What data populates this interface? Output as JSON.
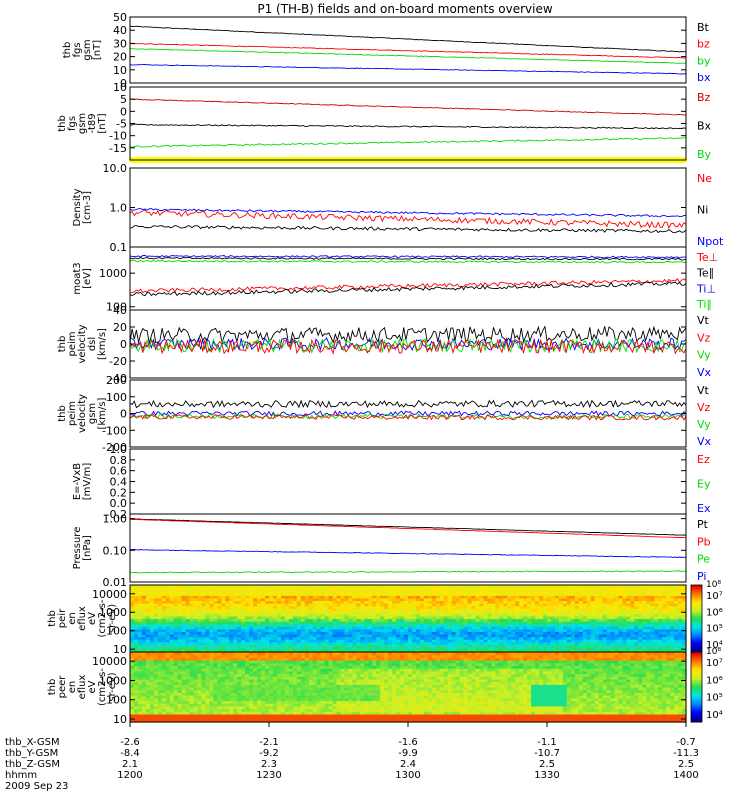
{
  "title": "P1 (TH-B) fields and on-board moments overview",
  "colors": {
    "black": "#000000",
    "red": "#ff0000",
    "green": "#00dd00",
    "blue": "#0000ff",
    "yellow": "#ffff00",
    "darkred": "#cc0000"
  },
  "chart_data": [
    {
      "type": "line",
      "ylabel": [
        "thb",
        "fgs",
        "gsm",
        "[nT]"
      ],
      "ylim": [
        0,
        50
      ],
      "yticks": [
        "0",
        "10",
        "20",
        "30",
        "40",
        "50"
      ],
      "legend": [
        {
          "name": "Bt",
          "color": "black"
        },
        {
          "name": "bz",
          "color": "red"
        },
        {
          "name": "by",
          "color": "green"
        },
        {
          "name": "bx",
          "color": "blue"
        }
      ],
      "series": [
        {
          "name": "Bt",
          "color": "black",
          "start": 43,
          "end": 23.5,
          "noise": 0.25
        },
        {
          "name": "bz",
          "color": "red",
          "start": 30,
          "end": 19,
          "noise": 0.25
        },
        {
          "name": "by",
          "color": "green",
          "start": 26,
          "end": 15,
          "noise": 0.25
        },
        {
          "name": "bx",
          "color": "blue",
          "start": 14,
          "end": 7,
          "noise": 0.25
        }
      ]
    },
    {
      "type": "line",
      "ylabel": [
        "thb",
        "fgs",
        "gsm",
        "-t89",
        "[nT]"
      ],
      "ylim": [
        -20,
        10
      ],
      "yticks": [
        "10",
        "5",
        "0",
        "-5",
        "-10",
        "-15"
      ],
      "ytickvals": [
        10,
        5,
        0,
        -5,
        -10,
        -15
      ],
      "legend": [
        {
          "name": "Bz",
          "color": "darkred"
        },
        {
          "name": "Bx",
          "color": "black"
        },
        {
          "name": "By",
          "color": "green"
        }
      ],
      "series": [
        {
          "name": "Bz",
          "color": "darkred",
          "start": 5,
          "end": -1.5,
          "noise": 0.15
        },
        {
          "name": "Bx",
          "color": "black",
          "start": -5.5,
          "end": -7,
          "noise": 0.25
        },
        {
          "name": "By",
          "color": "green",
          "start": -14.5,
          "end": -11,
          "noise": 0.3
        }
      ],
      "flag_bar_color": "yellow"
    },
    {
      "type": "line",
      "log": true,
      "ylabel": [
        "Density",
        "[cm-3]"
      ],
      "ylim": [
        0.1,
        10
      ],
      "yticks": [
        "10.0",
        "1.0",
        "0.1"
      ],
      "ytickvals": [
        10,
        1,
        0.1
      ],
      "legend": [
        {
          "name": "Ne",
          "color": "red"
        },
        {
          "name": "Ni",
          "color": "black"
        },
        {
          "name": "Npot",
          "color": "blue"
        }
      ],
      "series": [
        {
          "name": "Ni",
          "color": "black",
          "start": 0.33,
          "end": 0.25,
          "noise": 0.08
        },
        {
          "name": "Ne",
          "color": "red",
          "start": 0.75,
          "end": 0.35,
          "noise": 0.15
        },
        {
          "name": "Npot",
          "color": "blue",
          "start": 0.9,
          "end": 0.6,
          "noise": 0.05
        }
      ]
    },
    {
      "type": "line",
      "log": true,
      "ylabel": [
        "moat3",
        "[eV]"
      ],
      "ylim": [
        80,
        6000
      ],
      "yticks": [
        "1000",
        "100"
      ],
      "ytickvals": [
        1000,
        100
      ],
      "legend": [
        {
          "name": "Te⊥",
          "color": "red"
        },
        {
          "name": "Te∥",
          "color": "black"
        },
        {
          "name": "Ti⊥",
          "color": "blue"
        },
        {
          "name": "Ti∥",
          "color": "green"
        }
      ],
      "series": [
        {
          "name": "Ti⊥",
          "color": "blue",
          "start": 3200,
          "end": 3000,
          "noise": 0.05
        },
        {
          "name": "Te∥",
          "color": "black",
          "start": 2800,
          "end": 2600,
          "noise": 0.05
        },
        {
          "name": "Ti∥",
          "color": "green",
          "start": 2300,
          "end": 2100,
          "noise": 0.05
        },
        {
          "name": "Te⊥",
          "color": "red",
          "start": 290,
          "end": 600,
          "noise": 0.12
        },
        {
          "name": "Te∥",
          "color": "black",
          "start": 230,
          "end": 500,
          "noise": 0.12
        }
      ]
    },
    {
      "type": "line",
      "ylabel": [
        "thb",
        "peim",
        "velocity",
        "dsl",
        "[km/s]"
      ],
      "ylim": [
        -40,
        40
      ],
      "yticks": [
        "40",
        "20",
        "0",
        "-20",
        "-40"
      ],
      "ytickvals": [
        40,
        20,
        0,
        -20,
        -40
      ],
      "legend": [
        {
          "name": "Vt",
          "color": "black"
        },
        {
          "name": "Vz",
          "color": "red"
        },
        {
          "name": "Vy",
          "color": "green"
        },
        {
          "name": "Vx",
          "color": "blue"
        }
      ],
      "series": [
        {
          "name": "Vt",
          "color": "black",
          "start": 10,
          "end": 12,
          "noise": 9
        },
        {
          "name": "Vx",
          "color": "blue",
          "start": 0,
          "end": 0,
          "noise": 7
        },
        {
          "name": "Vy",
          "color": "green",
          "start": -2,
          "end": -2,
          "noise": 8
        },
        {
          "name": "Vz",
          "color": "red",
          "start": -3,
          "end": -3,
          "noise": 8
        }
      ]
    },
    {
      "type": "line",
      "ylabel": [
        "thb",
        "peim",
        "velocity",
        "gsm",
        "[km/s]"
      ],
      "ylim": [
        -200,
        200
      ],
      "yticks": [
        "200",
        "100",
        "0",
        "-100",
        "-200"
      ],
      "ytickvals": [
        200,
        100,
        0,
        -100,
        -200
      ],
      "legend": [
        {
          "name": "Vt",
          "color": "black"
        },
        {
          "name": "Vz",
          "color": "red"
        },
        {
          "name": "Vy",
          "color": "green"
        },
        {
          "name": "Vx",
          "color": "blue"
        }
      ],
      "series": [
        {
          "name": "Vt",
          "color": "black",
          "start": 55,
          "end": 60,
          "noise": 20
        },
        {
          "name": "Vx",
          "color": "blue",
          "start": 0,
          "end": 0,
          "noise": 14
        },
        {
          "name": "Vy",
          "color": "green",
          "start": -15,
          "end": -20,
          "noise": 14
        },
        {
          "name": "Vz",
          "color": "red",
          "start": -20,
          "end": -25,
          "noise": 14
        }
      ]
    },
    {
      "type": "line",
      "ylabel": [
        "E=-VxB",
        "[mV/m]"
      ],
      "ylim": [
        -0.2,
        1.0
      ],
      "yticks": [
        "1.0",
        "0.8",
        "0.6",
        "0.4",
        "0.2",
        "0.0",
        "-0.2"
      ],
      "ytickvals": [
        1.0,
        0.8,
        0.6,
        0.4,
        0.2,
        0.0,
        -0.2
      ],
      "legend": [
        {
          "name": "Ez",
          "color": "red"
        },
        {
          "name": "Ey",
          "color": "green"
        },
        {
          "name": "Ex",
          "color": "blue"
        }
      ],
      "series": []
    },
    {
      "type": "line",
      "log": true,
      "ylabel": [
        "Pressure",
        "[nPa]"
      ],
      "ylim": [
        0.01,
        1.4
      ],
      "yticks": [
        "1.00",
        "0.10",
        "0.01"
      ],
      "ytickvals": [
        1.0,
        0.1,
        0.01
      ],
      "legend": [
        {
          "name": "Pt",
          "color": "black"
        },
        {
          "name": "Pb",
          "color": "red"
        },
        {
          "name": "Pe",
          "color": "green"
        },
        {
          "name": "Pi",
          "color": "blue"
        }
      ],
      "series": [
        {
          "name": "Pt",
          "color": "black",
          "start": 0.98,
          "end": 0.3,
          "noise": 0.01
        },
        {
          "name": "Pb",
          "color": "red",
          "start": 0.95,
          "end": 0.25,
          "noise": 0.01
        },
        {
          "name": "Pi",
          "color": "blue",
          "start": 0.105,
          "end": 0.06,
          "noise": 0.02
        },
        {
          "name": "Pe",
          "color": "green",
          "start": 0.02,
          "end": 0.022,
          "noise": 0.03
        }
      ]
    },
    {
      "type": "heatmap",
      "ylabel": [
        "thb",
        "peir",
        "en",
        "eflux",
        "eV",
        "(cm2-s-",
        "sr-eV)"
      ],
      "ylim": [
        7,
        30000
      ],
      "yticks": [
        "10000",
        "1000",
        "100",
        "10"
      ],
      "ytickvals": [
        10000,
        1000,
        100,
        10
      ],
      "colorbar": {
        "ticks": [
          "10⁷",
          "10⁶",
          "10⁵",
          "10⁴"
        ],
        "top_label": "10⁸"
      }
    },
    {
      "type": "heatmap",
      "ylabel": [
        "thb",
        "peer",
        "en",
        "eflux",
        "eV",
        "(cm2-s-",
        "sr-eV)"
      ],
      "ylim": [
        7,
        30000
      ],
      "yticks": [
        "10000",
        "1000",
        "100",
        "10"
      ],
      "ytickvals": [
        10000,
        1000,
        100,
        10
      ],
      "colorbar": {
        "ticks": [
          "10⁷",
          "10⁶",
          "10⁵",
          "10⁴"
        ],
        "top_label": "10⁸"
      }
    }
  ],
  "x_axis": {
    "labels": [
      "thb_X-GSM",
      "thb_Y-GSM",
      "thb_Z-GSM",
      "hhmm",
      "2009 Sep 23"
    ],
    "rows": [
      [
        "-2.6",
        "-2.1",
        "-1.6",
        "-1.1",
        "-0.7"
      ],
      [
        "-8.4",
        "-9.2",
        "-9.9",
        "-10.7",
        "-11.3"
      ],
      [
        "2.1",
        "2.3",
        "2.4",
        "2.5",
        "2.5"
      ],
      [
        "1200",
        "1230",
        "1300",
        "1330",
        "1400"
      ]
    ]
  }
}
